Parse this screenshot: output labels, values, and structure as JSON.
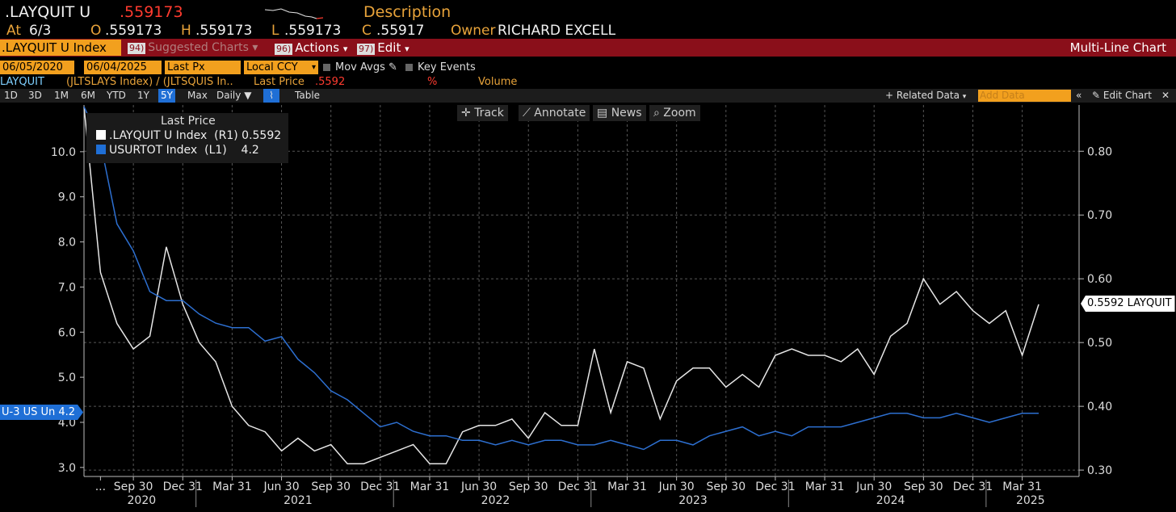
{
  "header": {
    "ticker": ".LAYQUIT U",
    "last_value": ".559173",
    "description_label": "Description",
    "at_label": "At",
    "at_date": "6/3",
    "o_label": "O",
    "o_value": ".559173",
    "h_label": "H",
    "h_value": ".559173",
    "l_label": "L",
    "l_value": ".559173",
    "c_label": "C",
    "c_value": ".55917",
    "owner_label": "Owner",
    "owner_name": "RICHARD EXCELL"
  },
  "menubar": {
    "security": ".LAYQUIT U Index",
    "suggested_num": "94)",
    "suggested_label": "Suggested Charts",
    "actions_num": "96)",
    "actions_label": "Actions",
    "edit_num": "97)",
    "edit_label": "Edit",
    "chart_type": "Multi-Line Chart"
  },
  "controls": {
    "start_date": "06/05/2020",
    "end_date": "06/04/2025",
    "field": "Last Px",
    "currency": "Local CCY",
    "mov_avgs": "Mov Avgs",
    "key_events": "Key Events"
  },
  "formula_row": {
    "name": "LAYQUIT",
    "formula": "(JLTSLAYS Index) / (JLTSQUIS In..",
    "last_price_label": "Last Price",
    "last_price_value": ".5592",
    "pct": "%",
    "volume": "Volume"
  },
  "timebar": {
    "periods": [
      "1D",
      "3D",
      "1M",
      "6M",
      "YTD",
      "1Y",
      "5Y",
      "Max"
    ],
    "selected": "5Y",
    "frequency": "Daily",
    "table": "Table",
    "related": "Related Data",
    "add_data": "Add Data",
    "edit_chart": "Edit Chart"
  },
  "chart_tools": [
    "Track",
    "Annotate",
    "News",
    "Zoom"
  ],
  "legend": {
    "title": "Last Price",
    "white_label": ".LAYQUIT U Index  (R1) 0.5592",
    "blue_label": "USURTOT Index  (L1)    4.2"
  },
  "right_tag": "0.5592 LAYQUIT",
  "left_tag": "U-3 US Un 4.2",
  "colors": {
    "background": "#000000",
    "layquit_line": "#e6e6e6",
    "unemployment_line": "#2d6fd0",
    "accent_amber": "#f2a01e",
    "menu_red": "#8a0f1a"
  },
  "chart_data": {
    "type": "line",
    "x_axis": {
      "tick_labels": [
        "...",
        "Sep 30",
        "Dec 31",
        "Mar 31",
        "Jun 30",
        "Sep 30",
        "Dec 31",
        "Mar 31",
        "Jun 30",
        "Sep 30",
        "Dec 31",
        "Mar 31",
        "Jun 30",
        "Sep 30",
        "Dec 31",
        "Mar 31",
        "Jun 30",
        "Sep 30",
        "Dec 31",
        "Mar 31"
      ],
      "years": [
        "2020",
        "2021",
        "2022",
        "2023",
        "2024",
        "2025"
      ]
    },
    "left_axis": {
      "ticks": [
        "3.0",
        "4.0",
        "5.0",
        "6.0",
        "7.0",
        "8.0",
        "9.0",
        "10.0"
      ],
      "range": [
        2.8,
        11.0
      ]
    },
    "right_axis": {
      "ticks": [
        "0.30",
        "0.40",
        "0.50",
        "0.60",
        "0.70",
        "0.80"
      ],
      "range": [
        0.29,
        0.87
      ]
    },
    "series": [
      {
        "name": ".LAYQUIT U Index",
        "axis": "right",
        "x": [
          "2020-06",
          "2020-07",
          "2020-08",
          "2020-09",
          "2020-10",
          "2020-11",
          "2020-12",
          "2021-01",
          "2021-02",
          "2021-03",
          "2021-04",
          "2021-05",
          "2021-06",
          "2021-07",
          "2021-08",
          "2021-09",
          "2021-10",
          "2021-11",
          "2021-12",
          "2022-01",
          "2022-02",
          "2022-03",
          "2022-04",
          "2022-05",
          "2022-06",
          "2022-07",
          "2022-08",
          "2022-09",
          "2022-10",
          "2022-11",
          "2022-12",
          "2023-01",
          "2023-02",
          "2023-03",
          "2023-04",
          "2023-05",
          "2023-06",
          "2023-07",
          "2023-08",
          "2023-09",
          "2023-10",
          "2023-11",
          "2023-12",
          "2024-01",
          "2024-02",
          "2024-03",
          "2024-04",
          "2024-05",
          "2024-06",
          "2024-07",
          "2024-08",
          "2024-09",
          "2024-10",
          "2024-11",
          "2024-12",
          "2025-01",
          "2025-02",
          "2025-03",
          "2025-04"
        ],
        "values": [
          0.87,
          0.61,
          0.53,
          0.49,
          0.51,
          0.65,
          0.56,
          0.5,
          0.47,
          0.4,
          0.37,
          0.36,
          0.33,
          0.35,
          0.33,
          0.34,
          0.31,
          0.31,
          0.32,
          0.33,
          0.34,
          0.31,
          0.31,
          0.36,
          0.37,
          0.37,
          0.38,
          0.35,
          0.39,
          0.37,
          0.37,
          0.49,
          0.39,
          0.47,
          0.46,
          0.38,
          0.44,
          0.46,
          0.46,
          0.43,
          0.45,
          0.43,
          0.48,
          0.49,
          0.48,
          0.48,
          0.47,
          0.49,
          0.45,
          0.51,
          0.53,
          0.6,
          0.56,
          0.58,
          0.55,
          0.53,
          0.55,
          0.48,
          0.56
        ]
      },
      {
        "name": "USURTOT Index",
        "axis": "left",
        "x": [
          "2020-06",
          "2020-07",
          "2020-08",
          "2020-09",
          "2020-10",
          "2020-11",
          "2020-12",
          "2021-01",
          "2021-02",
          "2021-03",
          "2021-04",
          "2021-05",
          "2021-06",
          "2021-07",
          "2021-08",
          "2021-09",
          "2021-10",
          "2021-11",
          "2021-12",
          "2022-01",
          "2022-02",
          "2022-03",
          "2022-04",
          "2022-05",
          "2022-06",
          "2022-07",
          "2022-08",
          "2022-09",
          "2022-10",
          "2022-11",
          "2022-12",
          "2023-01",
          "2023-02",
          "2023-03",
          "2023-04",
          "2023-05",
          "2023-06",
          "2023-07",
          "2023-08",
          "2023-09",
          "2023-10",
          "2023-11",
          "2023-12",
          "2024-01",
          "2024-02",
          "2024-03",
          "2024-04",
          "2024-05",
          "2024-06",
          "2024-07",
          "2024-08",
          "2024-09",
          "2024-10",
          "2024-11",
          "2024-12",
          "2025-01",
          "2025-02",
          "2025-03",
          "2025-04"
        ],
        "values": [
          11.0,
          10.2,
          8.4,
          7.8,
          6.9,
          6.7,
          6.7,
          6.4,
          6.2,
          6.1,
          6.1,
          5.8,
          5.9,
          5.4,
          5.1,
          4.7,
          4.5,
          4.2,
          3.9,
          4.0,
          3.8,
          3.7,
          3.7,
          3.6,
          3.6,
          3.5,
          3.6,
          3.5,
          3.6,
          3.6,
          3.5,
          3.5,
          3.6,
          3.5,
          3.4,
          3.6,
          3.6,
          3.5,
          3.7,
          3.8,
          3.9,
          3.7,
          3.8,
          3.7,
          3.9,
          3.9,
          3.9,
          4.0,
          4.1,
          4.2,
          4.2,
          4.1,
          4.1,
          4.2,
          4.1,
          4.0,
          4.1,
          4.2,
          4.2
        ]
      }
    ]
  }
}
